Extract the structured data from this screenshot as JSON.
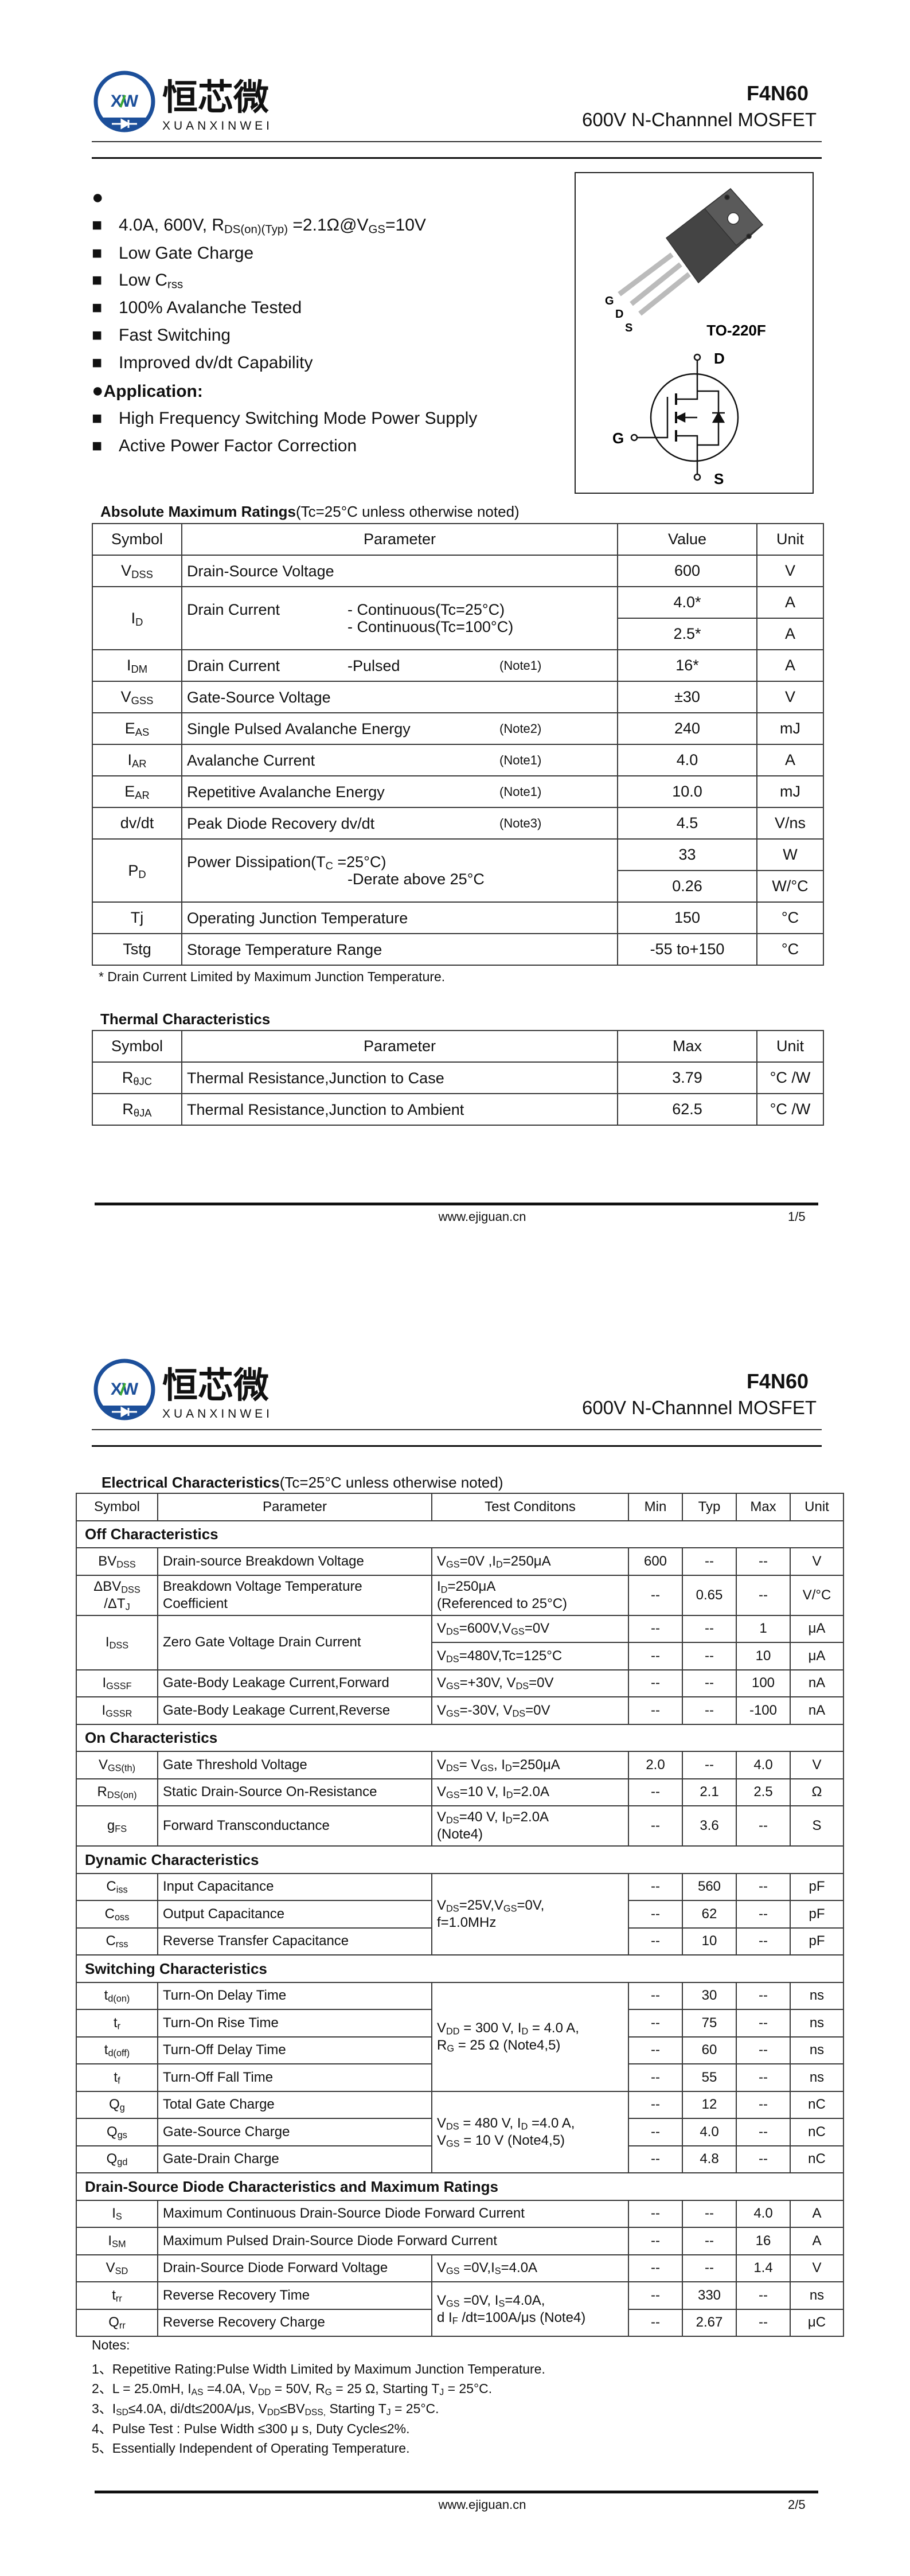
{
  "header": {
    "logo_mark": "XW",
    "logo_cn": "恒芯微",
    "logo_en": "XUANXINWEI",
    "part_number": "F4N60",
    "subtitle": "600V N-Channnel MOSFET"
  },
  "colors": {
    "logo_blue": "#1c4f9a",
    "logo_green": "#3aa935"
  },
  "features": {
    "items": [
      [
        "4.0A, 600V, R",
        "DS(on)(Typ)",
        " =2.1Ω@V",
        "GS",
        "=10V"
      ],
      [
        "Low Gate Charge"
      ],
      [
        "Low C",
        "rss"
      ],
      [
        "100% Avalanche Tested"
      ],
      [
        "Fast Switching"
      ],
      [
        "Improved dv/dt Capability"
      ]
    ],
    "application_label": "Application:",
    "applications": [
      [
        "High Frequency Switching Mode Power Supply"
      ],
      [
        "Active Power Factor Correction"
      ]
    ]
  },
  "package": {
    "pins": [
      "G",
      "D",
      "S"
    ],
    "name": "TO-220F",
    "symbol_labels": {
      "drain": "D",
      "gate": "G",
      "source": "S"
    }
  },
  "abs_max": {
    "title": "Absolute Maximum Ratings",
    "title_note": "(Tc=25°C unless otherwise noted)",
    "headers": [
      "Symbol",
      "Parameter",
      "Value",
      "Unit"
    ],
    "rows": [
      [
        [
          "V",
          "DSS"
        ],
        {
          "name": "Drain-Source Voltage"
        },
        "600",
        "V"
      ],
      [
        {
          "v": [
            "I",
            "D"
          ],
          "rs": 2
        },
        {
          "name": "Drain Current",
          "detail": [
            "- Continuous(Tc=25°C)",
            "- Continuous(Tc=100°C)"
          ],
          "rs": 2
        },
        "4.0*",
        "A"
      ],
      [
        "2.5*",
        "A"
      ],
      [
        [
          "I",
          "DM"
        ],
        {
          "name": "Drain Current",
          "detail": [
            "-Pulsed"
          ],
          "note": "(Note1)"
        },
        "16*",
        "A"
      ],
      [
        [
          "V",
          "GSS"
        ],
        {
          "name": "Gate-Source Voltage"
        },
        "±30",
        "V"
      ],
      [
        [
          "E",
          "AS"
        ],
        {
          "name": "Single Pulsed Avalanche Energy",
          "note": "(Note2)"
        },
        "240",
        "mJ"
      ],
      [
        [
          "I",
          "AR"
        ],
        {
          "name": "Avalanche Current",
          "note": "(Note1)"
        },
        "4.0",
        "A"
      ],
      [
        [
          "E",
          "AR"
        ],
        {
          "name": "Repetitive Avalanche Energy",
          "note": "(Note1)"
        },
        "10.0",
        "mJ"
      ],
      [
        "dv/dt",
        {
          "name": "Peak Diode Recovery dv/dt",
          "note": "(Note3)"
        },
        "4.5",
        "V/ns"
      ],
      [
        {
          "v": [
            "P",
            "D"
          ],
          "rs": 2
        },
        {
          "name": [
            "Power Dissipation(T",
            "C",
            " =25°C)"
          ],
          "detail": [
            "",
            "-Derate above 25°C"
          ],
          "rs": 2
        },
        "33",
        "W"
      ],
      [
        "0.26",
        "W/°C"
      ],
      [
        "Tj",
        {
          "name": "Operating Junction Temperature"
        },
        "150",
        "°C"
      ],
      [
        "Tstg",
        {
          "name": "Storage Temperature Range"
        },
        "-55 to+150",
        "°C"
      ]
    ],
    "footnote": "* Drain Current Limited by Maximum Junction Temperature."
  },
  "thermal": {
    "title": "Thermal Characteristics",
    "headers": [
      "Symbol",
      "Parameter",
      "Max",
      "Unit"
    ],
    "rows": [
      [
        [
          "R",
          "θJC"
        ],
        {
          "name": "Thermal Resistance,Junction to Case"
        },
        "3.79",
        "°C /W"
      ],
      [
        [
          "R",
          "θJA"
        ],
        {
          "name": "Thermal Resistance,Junction to Ambient"
        },
        "62.5",
        "°C /W"
      ]
    ]
  },
  "footer": {
    "url": "www.ejiguan.cn",
    "page1": "1/5",
    "page2": "2/5"
  },
  "electrical": {
    "title": "Electrical Characteristics",
    "title_note": "(Tc=25°C unless otherwise noted)",
    "headers": [
      "Symbol",
      "Parameter",
      "Test Conditons",
      "Min",
      "Typ",
      "Max",
      "Unit"
    ],
    "rows": [
      {
        "section": "Off Characteristics"
      },
      [
        [
          "BV",
          "DSS"
        ],
        "Drain-source Breakdown Voltage",
        [
          "V",
          "GS",
          "=0V ,I",
          "D",
          "=250μA"
        ],
        "600",
        "--",
        "--",
        "V"
      ],
      [
        [
          [
            "ΔBV",
            "DSS"
          ],
          [
            "/ΔT",
            "J"
          ]
        ],
        [
          [
            "Breakdown Voltage Temperature"
          ],
          [
            "Coefficient"
          ]
        ],
        [
          [
            "I",
            "D",
            "=250μA"
          ],
          [
            "(Referenced to 25°C)"
          ]
        ],
        "--",
        "0.65",
        "--",
        "V/°C"
      ],
      [
        {
          "v": [
            "I",
            "DSS"
          ],
          "rs": 2
        },
        {
          "v": "Zero Gate Voltage Drain Current",
          "rs": 2
        },
        [
          "V",
          "DS",
          "=600V,V",
          "GS",
          "=0V"
        ],
        "--",
        "--",
        "1",
        "μA"
      ],
      [
        [
          "V",
          "DS",
          "=480V,Tc=125°C"
        ],
        "--",
        "--",
        "10",
        "μA"
      ],
      [
        [
          "I",
          "GSSF"
        ],
        "Gate-Body Leakage Current,Forward",
        [
          "V",
          "GS",
          "=+30V, V",
          "DS",
          "=0V"
        ],
        "--",
        "--",
        "100",
        "nA"
      ],
      [
        [
          "I",
          "GSSR"
        ],
        "Gate-Body Leakage Current,Reverse",
        [
          "V",
          "GS",
          "=-30V, V",
          "DS",
          "=0V"
        ],
        "--",
        "--",
        "-100",
        "nA"
      ],
      {
        "section": "On Characteristics"
      },
      [
        [
          "V",
          "GS(th)"
        ],
        "Gate Threshold Voltage",
        [
          "V",
          "DS",
          "= V",
          "GS",
          ", I",
          "D",
          "=250μA"
        ],
        "2.0",
        "--",
        "4.0",
        "V"
      ],
      [
        [
          "R",
          "DS(on)"
        ],
        "Static Drain-Source On-Resistance",
        [
          "V",
          "GS",
          "=10 V, I",
          "D",
          "=2.0A"
        ],
        "--",
        "2.1",
        "2.5",
        "Ω"
      ],
      [
        [
          "g",
          "FS"
        ],
        "Forward Transconductance",
        [
          [
            "V",
            "DS",
            "=40 V, I",
            "D",
            "=2.0A"
          ],
          [
            "(Note4)"
          ]
        ],
        "--",
        "3.6",
        "--",
        "S"
      ],
      {
        "section": "Dynamic Characteristics"
      },
      [
        [
          "C",
          "iss"
        ],
        "Input Capacitance",
        {
          "v": [
            [
              "V",
              "DS",
              "=25V,V",
              "GS",
              "=0V,"
            ],
            [
              "f=1.0MHz"
            ]
          ],
          "rs": 3
        },
        "--",
        "560",
        "--",
        "pF"
      ],
      [
        [
          "C",
          "oss"
        ],
        "Output Capacitance",
        "--",
        "62",
        "--",
        "pF"
      ],
      [
        [
          "C",
          "rss"
        ],
        "Reverse Transfer Capacitance",
        "--",
        "10",
        "--",
        "pF"
      ],
      {
        "section": "Switching Characteristics"
      },
      [
        [
          "t",
          "d(on)"
        ],
        "Turn-On Delay Time",
        {
          "v": [
            [
              "V",
              "DD",
              " = 300 V, I",
              "D",
              " = 4.0 A,"
            ],
            [
              "R",
              "G",
              " = 25 Ω    (Note4,5)"
            ]
          ],
          "rs": 4
        },
        "--",
        "30",
        "--",
        "ns"
      ],
      [
        [
          "t",
          "r"
        ],
        "Turn-On Rise Time",
        "--",
        "75",
        "--",
        "ns"
      ],
      [
        [
          "t",
          "d(off)"
        ],
        "Turn-Off Delay Time",
        "--",
        "60",
        "--",
        "ns"
      ],
      [
        [
          "t",
          "f"
        ],
        "Turn-Off Fall Time",
        "--",
        "55",
        "--",
        "ns"
      ],
      [
        [
          "Q",
          "g"
        ],
        "Total Gate Charge",
        {
          "v": [
            [
              "V",
              "DS",
              " = 480 V, I",
              "D",
              " =4.0 A,"
            ],
            [
              "V",
              "GS",
              " = 10 V    (Note4,5)"
            ]
          ],
          "rs": 3
        },
        "--",
        "12",
        "--",
        "nC"
      ],
      [
        [
          "Q",
          "gs"
        ],
        "Gate-Source Charge",
        "--",
        "4.0",
        "--",
        "nC"
      ],
      [
        [
          "Q",
          "gd"
        ],
        "Gate-Drain Charge",
        "--",
        "4.8",
        "--",
        "nC"
      ],
      {
        "section": "Drain-Source Diode Characteristics and Maximum Ratings"
      },
      [
        [
          "I",
          "S"
        ],
        {
          "v": "Maximum Continuous Drain-Source Diode Forward Current",
          "cs": 2
        },
        "--",
        "--",
        "4.0",
        "A"
      ],
      [
        [
          "I",
          "SM"
        ],
        {
          "v": "Maximum Pulsed Drain-Source Diode Forward Current",
          "cs": 2
        },
        "--",
        "--",
        "16",
        "A"
      ],
      [
        [
          "V",
          "SD"
        ],
        "Drain-Source Diode Forward Voltage",
        [
          "V",
          "GS",
          " =0V,I",
          "S",
          "=4.0A"
        ],
        "--",
        "--",
        "1.4",
        "V"
      ],
      [
        [
          "t",
          "rr"
        ],
        "Reverse Recovery Time",
        {
          "v": [
            [
              "V",
              "GS",
              " =0V, I",
              "S",
              "=4.0A,"
            ],
            [
              "d I",
              "F",
              " /dt=100A/μs (Note4)"
            ]
          ],
          "rs": 2
        },
        "--",
        "330",
        "--",
        "ns"
      ],
      [
        [
          "Q",
          "rr"
        ],
        "Reverse Recovery Charge",
        "--",
        "2.67",
        "--",
        "μC"
      ]
    ]
  },
  "notes": {
    "title": "Notes:",
    "items": [
      [
        "1、Repetitive Rating:Pulse Width Limited by Maximum Junction Temperature."
      ],
      [
        "2、L = 25.0mH, I",
        "AS",
        " =4.0A, V",
        "DD",
        " = 50V, R",
        "G",
        " = 25 Ω, Starting T",
        "J",
        " = 25°C."
      ],
      [
        "3、I",
        "SD",
        "≤4.0A, di/dt≤200A/μs, V",
        "DD",
        "≤BV",
        "DSS,",
        " Starting T",
        "J",
        " = 25°C."
      ],
      [
        "4、Pulse Test : Pulse Width ≤300 μ s, Duty Cycle≤2%."
      ],
      [
        "5、Essentially Independent of Operating Temperature."
      ]
    ]
  }
}
